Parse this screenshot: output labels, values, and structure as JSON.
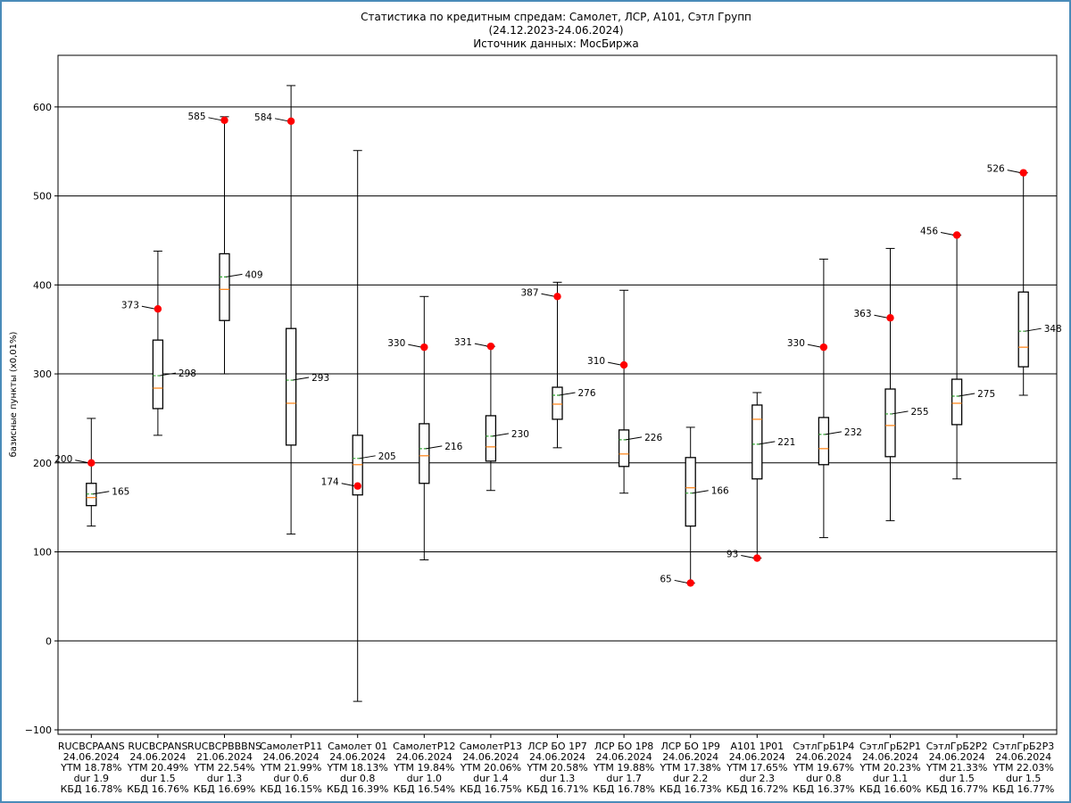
{
  "chart_data": {
    "type": "boxplot",
    "title_lines": [
      "Статистика по кредитным спредам: Самолет, ЛСР, А101, Сэтл Групп",
      "(24.12.2023-24.06.2024)",
      "Источник данных: МосБиржа"
    ],
    "xlabel": "",
    "ylabel": "базисные пункты (x0,01%)",
    "ylim": [
      -105,
      658
    ],
    "yticks": [
      -100,
      0,
      100,
      200,
      300,
      400,
      500,
      600
    ],
    "grid": "horizontal",
    "colors": {
      "box": "#000000",
      "median": "#ff7f0e",
      "mean": "#2ca02c",
      "current": "#ff0000",
      "grid": "#000000",
      "frame": "#4a8bb9"
    },
    "series": [
      {
        "label": [
          "RUCBCPAANS",
          "24.06.2024",
          "YTM 18.78%",
          "dur 1.9",
          "КБД 16.78%"
        ],
        "whisker_low": 129,
        "q1": 152,
        "median": 161,
        "q3": 177,
        "whisker_high": 250,
        "mean": 165,
        "mean_label": "165",
        "current": 200,
        "current_label": "200"
      },
      {
        "label": [
          "RUCBCPANS",
          "24.06.2024",
          "YTM 20.49%",
          "dur 1.5",
          "КБД 16.76%"
        ],
        "whisker_low": 231,
        "q1": 261,
        "median": 284,
        "q3": 338,
        "whisker_high": 438,
        "mean": 298,
        "mean_label": "298",
        "current": 373,
        "current_label": "373"
      },
      {
        "label": [
          "RUCBCPBBBNS",
          "21.06.2024",
          "YTM 22.54%",
          "dur 1.3",
          "КБД 16.69%"
        ],
        "whisker_low": 300,
        "q1": 360,
        "median": 395,
        "q3": 435,
        "whisker_high": 589,
        "mean": 409,
        "mean_label": "409",
        "current": 585,
        "current_label": "585"
      },
      {
        "label": [
          "СамолетР11",
          "24.06.2024",
          "YTM 21.99%",
          "dur 0.6",
          "КБД 16.15%"
        ],
        "whisker_low": 120,
        "q1": 220,
        "median": 267,
        "q3": 351,
        "whisker_high": 624,
        "mean": 293,
        "mean_label": "293",
        "current": 584,
        "current_label": "584"
      },
      {
        "label": [
          "Самолет 01",
          "24.06.2024",
          "YTM 18.13%",
          "dur 0.8",
          "КБД 16.39%"
        ],
        "whisker_low": -68,
        "q1": 164,
        "median": 198,
        "q3": 231,
        "whisker_high": 551,
        "mean": 205,
        "mean_label": "205",
        "current": 174,
        "current_label": "174"
      },
      {
        "label": [
          "СамолетР12",
          "24.06.2024",
          "YTM 19.84%",
          "dur 1.0",
          "КБД 16.54%"
        ],
        "whisker_low": 91,
        "q1": 177,
        "median": 208,
        "q3": 244,
        "whisker_high": 387,
        "mean": 216,
        "mean_label": "216",
        "current": 330,
        "current_label": "330"
      },
      {
        "label": [
          "СамолетР13",
          "24.06.2024",
          "YTM 20.06%",
          "dur 1.4",
          "КБД 16.75%"
        ],
        "whisker_low": 169,
        "q1": 202,
        "median": 218,
        "q3": 253,
        "whisker_high": 331,
        "mean": 230,
        "mean_label": "230",
        "current": 331,
        "current_label": "331"
      },
      {
        "label": [
          "ЛСР БО 1Р7",
          "24.06.2024",
          "YTM 20.58%",
          "dur 1.3",
          "КБД 16.71%"
        ],
        "whisker_low": 217,
        "q1": 249,
        "median": 266,
        "q3": 285,
        "whisker_high": 403,
        "mean": 276,
        "mean_label": "276",
        "current": 387,
        "current_label": "387"
      },
      {
        "label": [
          "ЛСР БО 1Р8",
          "24.06.2024",
          "YTM 19.88%",
          "dur 1.7",
          "КБД 16.78%"
        ],
        "whisker_low": 166,
        "q1": 196,
        "median": 210,
        "q3": 237,
        "whisker_high": 394,
        "mean": 226,
        "mean_label": "226",
        "current": 310,
        "current_label": "310"
      },
      {
        "label": [
          "ЛСР БО 1Р9",
          "24.06.2024",
          "YTM 17.38%",
          "dur 2.2",
          "КБД 16.73%"
        ],
        "whisker_low": 65,
        "q1": 129,
        "median": 172,
        "q3": 206,
        "whisker_high": 240,
        "mean": 166,
        "mean_label": "166",
        "current": 65,
        "current_label": "65"
      },
      {
        "label": [
          "А101 1Р01",
          "24.06.2024",
          "YTM 17.65%",
          "dur 2.3",
          "КБД 16.72%"
        ],
        "whisker_low": 93,
        "q1": 182,
        "median": 249,
        "q3": 265,
        "whisker_high": 279,
        "mean": 221,
        "mean_label": "221",
        "current": 93,
        "current_label": "93"
      },
      {
        "label": [
          "СэтлГрБ1Р4",
          "24.06.2024",
          "YTM 19.67%",
          "dur 0.8",
          "КБД 16.37%"
        ],
        "whisker_low": 116,
        "q1": 198,
        "median": 216,
        "q3": 251,
        "whisker_high": 429,
        "mean": 232,
        "mean_label": "232",
        "current": 330,
        "current_label": "330"
      },
      {
        "label": [
          "СэтлГрБ2Р1",
          "24.06.2024",
          "YTM 20.23%",
          "dur 1.1",
          "КБД 16.60%"
        ],
        "whisker_low": 135,
        "q1": 207,
        "median": 242,
        "q3": 283,
        "whisker_high": 441,
        "mean": 255,
        "mean_label": "255",
        "current": 363,
        "current_label": "363"
      },
      {
        "label": [
          "СэтлГрБ2Р2",
          "24.06.2024",
          "YTM 21.33%",
          "dur 1.5",
          "КБД 16.77%"
        ],
        "whisker_low": 182,
        "q1": 243,
        "median": 267,
        "q3": 294,
        "whisker_high": 456,
        "mean": 275,
        "mean_label": "275",
        "current": 456,
        "current_label": "456"
      },
      {
        "label": [
          "СэтлГрБ2Р3",
          "24.06.2024",
          "YTM 22.03%",
          "dur 1.5",
          "КБД 16.77%"
        ],
        "whisker_low": 276,
        "q1": 308,
        "median": 330,
        "q3": 392,
        "whisker_high": 526,
        "mean": 348,
        "mean_label": "348",
        "current": 526,
        "current_label": "526"
      }
    ]
  }
}
